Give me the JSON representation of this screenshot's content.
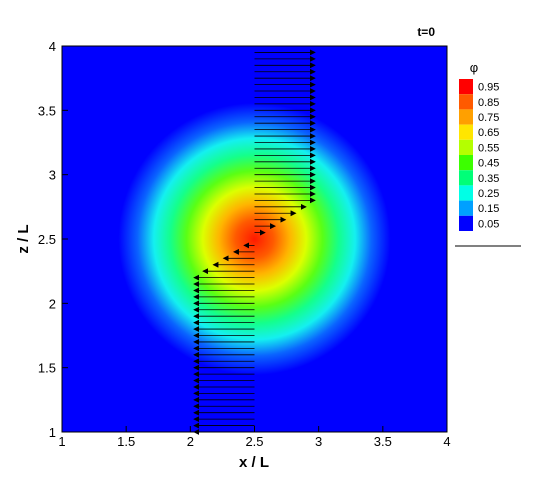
{
  "chart_data": {
    "type": "heatmap",
    "title": "t=0",
    "xlabel": "x / L",
    "ylabel": "z / L",
    "xlim": [
      1,
      4
    ],
    "ylim": [
      1,
      4
    ],
    "xticks": [
      "1",
      "1.5",
      "2",
      "2.5",
      "3",
      "3.5",
      "4"
    ],
    "yticks": [
      "1",
      "1.5",
      "2",
      "2.5",
      "3",
      "3.5",
      "4"
    ],
    "field": {
      "name": "φ",
      "center": [
        2.5,
        2.5
      ],
      "peak_value": 0.97,
      "sigma": 0.4,
      "background_value": 0.05,
      "colorscale": [
        "#0000ff",
        "#00c8ff",
        "#00ffc8",
        "#00ff00",
        "#c8ff00",
        "#ffff00",
        "#ff9600",
        "#ff0000"
      ]
    },
    "colorbar": {
      "title": "φ",
      "levels": [
        "0.95",
        "0.85",
        "0.75",
        "0.65",
        "0.55",
        "0.45",
        "0.35",
        "0.25",
        "0.15",
        "0.05"
      ],
      "colors": [
        "#ff0000",
        "#ff5a00",
        "#ffa000",
        "#ffe600",
        "#b4ff00",
        "#3cff00",
        "#00ff78",
        "#00ffe6",
        "#00a0ff",
        "#0000ff"
      ]
    },
    "vectors": {
      "description_units": "z in z/L, u in x/L units (arrow length)",
      "x_origin": 2.5,
      "z_start": 1.0,
      "z_end": 3.95,
      "count": 60,
      "u_amplitude": 0.45,
      "u_sigma": 0.55,
      "u_center": 2.5
    }
  }
}
